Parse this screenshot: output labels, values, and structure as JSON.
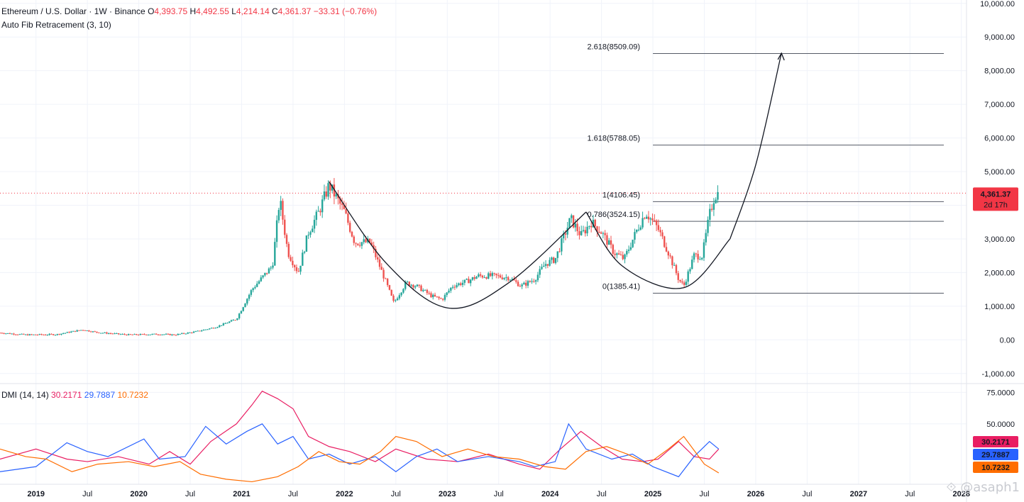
{
  "header": {
    "symbol": "Ethereum / U.S. Dollar · 1W · Binance",
    "open_label": "O",
    "open": "4,393.75",
    "high_label": "H",
    "high": "4,492.55",
    "low_label": "L",
    "low": "4,214.14",
    "close_label": "C",
    "close": "4,361.37",
    "change": "−33.31 (−0.76%)",
    "indicator": "Auto Fib Retracement (3, 10)"
  },
  "price_badge": {
    "value": "4,361.37",
    "countdown": "2d 17h",
    "color": "#f23645"
  },
  "dmi_legend": {
    "name": "DMI (14, 14)",
    "pdi": "30.2171",
    "mdi": "29.7887",
    "adx": "10.7232"
  },
  "watermark": "@asaph1",
  "colors": {
    "up": "#26a69a",
    "down": "#ef5350",
    "pdi": "#e91e63",
    "mdi": "#2962ff",
    "adx": "#ff6d00",
    "grid": "#f0f3fa"
  },
  "chart_data": [
    {
      "type": "candlestick",
      "title": "Ethereum / U.S. Dollar · 1W · Binance",
      "y_ticks": [
        "10,000.00",
        "9,000.00",
        "8,000.00",
        "7,000.00",
        "6,000.00",
        "5,000.00",
        "4,000.00",
        "3,000.00",
        "2,000.00",
        "1,000.00",
        "0.00",
        "-1,000.00"
      ],
      "y_tick_values": [
        10000,
        9000,
        8000,
        7000,
        6000,
        5000,
        4000,
        3000,
        2000,
        1000,
        0,
        -1000
      ],
      "ylim": [
        -1300,
        10100
      ],
      "x_ticks": [
        "2019",
        "Jul",
        "2020",
        "Jul",
        "2021",
        "Jul",
        "2022",
        "Jul",
        "2023",
        "Jul",
        "2024",
        "Jul",
        "2025",
        "Jul",
        "2026",
        "Jul",
        "2027",
        "Jul",
        "2028"
      ],
      "x_tick_values": [
        2019.0,
        2019.5,
        2020.0,
        2020.5,
        2021.0,
        2021.5,
        2022.0,
        2022.5,
        2023.0,
        2023.5,
        2024.0,
        2024.5,
        2025.0,
        2025.5,
        2026.0,
        2026.5,
        2027.0,
        2027.5,
        2028.0
      ],
      "xlim": [
        2018.65,
        2028.05
      ],
      "price_path": [
        [
          2018.65,
          210
        ],
        [
          2018.9,
          150
        ],
        [
          2019.2,
          160
        ],
        [
          2019.45,
          300
        ],
        [
          2019.6,
          220
        ],
        [
          2019.9,
          150
        ],
        [
          2020.2,
          170
        ],
        [
          2020.35,
          150
        ],
        [
          2020.55,
          240
        ],
        [
          2020.75,
          380
        ],
        [
          2020.95,
          620
        ],
        [
          2021.1,
          1500
        ],
        [
          2021.3,
          2200
        ],
        [
          2021.37,
          4200
        ],
        [
          2021.45,
          2600
        ],
        [
          2021.55,
          2000
        ],
        [
          2021.65,
          3200
        ],
        [
          2021.75,
          3800
        ],
        [
          2021.85,
          4600
        ],
        [
          2022.0,
          3800
        ],
        [
          2022.1,
          2900
        ],
        [
          2022.25,
          2900
        ],
        [
          2022.38,
          1900
        ],
        [
          2022.48,
          1100
        ],
        [
          2022.6,
          1700
        ],
        [
          2022.7,
          1600
        ],
        [
          2022.85,
          1300
        ],
        [
          2022.95,
          1200
        ],
        [
          2023.05,
          1600
        ],
        [
          2023.2,
          1750
        ],
        [
          2023.3,
          1900
        ],
        [
          2023.45,
          1900
        ],
        [
          2023.6,
          1850
        ],
        [
          2023.72,
          1600
        ],
        [
          2023.85,
          1800
        ],
        [
          2023.95,
          2250
        ],
        [
          2024.05,
          2400
        ],
        [
          2024.2,
          3600
        ],
        [
          2024.3,
          3100
        ],
        [
          2024.4,
          3500
        ],
        [
          2024.5,
          3200
        ],
        [
          2024.62,
          2600
        ],
        [
          2024.72,
          2400
        ],
        [
          2024.85,
          3300
        ],
        [
          2024.93,
          3800
        ],
        [
          2025.05,
          3300
        ],
        [
          2025.15,
          2600
        ],
        [
          2025.25,
          1800
        ],
        [
          2025.3,
          1600
        ],
        [
          2025.4,
          2500
        ],
        [
          2025.48,
          2500
        ],
        [
          2025.55,
          3700
        ],
        [
          2025.6,
          4300
        ],
        [
          2025.64,
          4361
        ]
      ],
      "fib_levels": [
        {
          "ratio": "2.618",
          "value": 8509.09,
          "label": "2.618(8509.09)"
        },
        {
          "ratio": "1.618",
          "value": 5788.05,
          "label": "1.618(5788.05)"
        },
        {
          "ratio": "1",
          "value": 4106.45,
          "label": "1(4106.45)"
        },
        {
          "ratio": "0.786",
          "value": 3524.15,
          "label": "0.786(3524.15)"
        },
        {
          "ratio": "0",
          "value": 1385.41,
          "label": "0(1385.41)"
        }
      ],
      "fib_start_x": 2025.0,
      "current_price": 4361.37,
      "drawings": {
        "cup_curve": [
          [
            2021.85,
            4700
          ],
          [
            2022.4,
            2300
          ],
          [
            2023.0,
            950
          ],
          [
            2023.6,
            1700
          ],
          [
            2024.35,
            3800
          ]
        ],
        "bowl_curve": [
          [
            2024.35,
            3800
          ],
          [
            2024.7,
            2200
          ],
          [
            2025.3,
            1550
          ],
          [
            2025.75,
            3000
          ]
        ],
        "arrow_curve": [
          [
            2025.75,
            3000
          ],
          [
            2026.0,
            5200
          ],
          [
            2026.25,
            8520
          ]
        ]
      }
    },
    {
      "type": "line",
      "title": "DMI (14, 14)",
      "y_ticks": [
        "75.0000",
        "50.0000"
      ],
      "y_tick_values": [
        75,
        50
      ],
      "ylim": [
        2,
        82
      ],
      "series": [
        {
          "name": "30.2171",
          "color": "#e91e63",
          "points": [
            [
              2018.65,
              22
            ],
            [
              2019.0,
              30
            ],
            [
              2019.3,
              22
            ],
            [
              2019.5,
              20
            ],
            [
              2019.8,
              24
            ],
            [
              2020.1,
              18
            ],
            [
              2020.3,
              28
            ],
            [
              2020.5,
              18
            ],
            [
              2020.7,
              36
            ],
            [
              2020.95,
              50
            ],
            [
              2021.1,
              65
            ],
            [
              2021.2,
              76
            ],
            [
              2021.35,
              70
            ],
            [
              2021.5,
              62
            ],
            [
              2021.65,
              40
            ],
            [
              2021.85,
              32
            ],
            [
              2022.05,
              28
            ],
            [
              2022.3,
              20
            ],
            [
              2022.5,
              30
            ],
            [
              2022.8,
              22
            ],
            [
              2023.1,
              20
            ],
            [
              2023.4,
              26
            ],
            [
              2023.7,
              18
            ],
            [
              2023.9,
              14
            ],
            [
              2024.1,
              30
            ],
            [
              2024.3,
              44
            ],
            [
              2024.5,
              32
            ],
            [
              2024.7,
              22
            ],
            [
              2024.9,
              20
            ],
            [
              2025.05,
              22
            ],
            [
              2025.25,
              36
            ],
            [
              2025.4,
              24
            ],
            [
              2025.55,
              22
            ],
            [
              2025.64,
              30
            ]
          ]
        },
        {
          "name": "29.7887",
          "color": "#2962ff",
          "points": [
            [
              2018.65,
              12
            ],
            [
              2019.0,
              16
            ],
            [
              2019.3,
              35
            ],
            [
              2019.5,
              28
            ],
            [
              2019.7,
              24
            ],
            [
              2020.05,
              38
            ],
            [
              2020.2,
              22
            ],
            [
              2020.45,
              24
            ],
            [
              2020.65,
              48
            ],
            [
              2020.85,
              34
            ],
            [
              2021.05,
              44
            ],
            [
              2021.2,
              50
            ],
            [
              2021.35,
              34
            ],
            [
              2021.5,
              40
            ],
            [
              2021.65,
              22
            ],
            [
              2021.85,
              26
            ],
            [
              2022.05,
              18
            ],
            [
              2022.3,
              24
            ],
            [
              2022.5,
              12
            ],
            [
              2022.7,
              24
            ],
            [
              2022.9,
              30
            ],
            [
              2023.1,
              20
            ],
            [
              2023.4,
              24
            ],
            [
              2023.7,
              20
            ],
            [
              2023.85,
              16
            ],
            [
              2024.05,
              20
            ],
            [
              2024.18,
              50
            ],
            [
              2024.35,
              30
            ],
            [
              2024.6,
              22
            ],
            [
              2024.8,
              26
            ],
            [
              2025.0,
              16
            ],
            [
              2025.25,
              8
            ],
            [
              2025.4,
              24
            ],
            [
              2025.55,
              36
            ],
            [
              2025.64,
              30
            ]
          ]
        },
        {
          "name": "10.7232",
          "color": "#ff6d00",
          "points": [
            [
              2018.65,
              30
            ],
            [
              2018.9,
              24
            ],
            [
              2019.1,
              22
            ],
            [
              2019.35,
              12
            ],
            [
              2019.6,
              18
            ],
            [
              2019.9,
              20
            ],
            [
              2020.15,
              16
            ],
            [
              2020.4,
              20
            ],
            [
              2020.6,
              10
            ],
            [
              2020.85,
              6
            ],
            [
              2021.1,
              4
            ],
            [
              2021.35,
              8
            ],
            [
              2021.55,
              16
            ],
            [
              2021.75,
              28
            ],
            [
              2021.95,
              20
            ],
            [
              2022.15,
              18
            ],
            [
              2022.35,
              28
            ],
            [
              2022.5,
              40
            ],
            [
              2022.7,
              36
            ],
            [
              2022.95,
              24
            ],
            [
              2023.2,
              30
            ],
            [
              2023.45,
              24
            ],
            [
              2023.7,
              22
            ],
            [
              2023.95,
              16
            ],
            [
              2024.15,
              14
            ],
            [
              2024.35,
              28
            ],
            [
              2024.55,
              32
            ],
            [
              2024.75,
              26
            ],
            [
              2024.95,
              18
            ],
            [
              2025.15,
              30
            ],
            [
              2025.3,
              40
            ],
            [
              2025.5,
              18
            ],
            [
              2025.64,
              11
            ]
          ]
        }
      ]
    }
  ]
}
